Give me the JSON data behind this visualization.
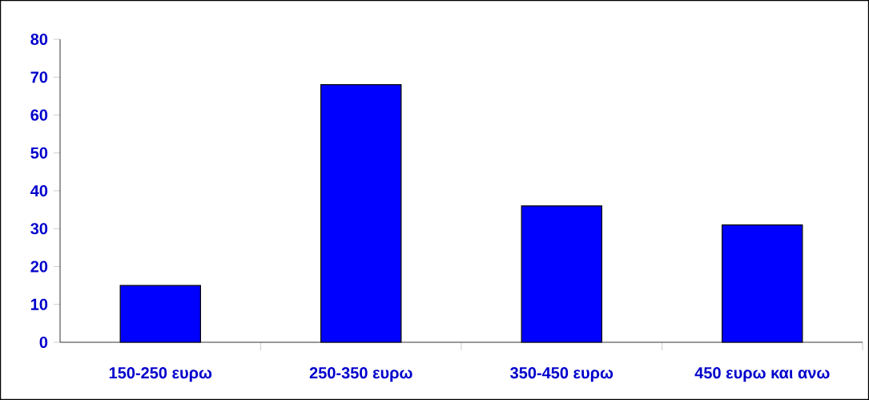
{
  "chart_data": {
    "type": "bar",
    "categories": [
      "150-250 ευρω",
      "250-350 ευρω",
      "350-450 ευρω",
      "450 ευρω και ανω"
    ],
    "values": [
      15,
      68,
      36,
      31
    ],
    "color": "#0000ff",
    "ylim": [
      0,
      80
    ],
    "yticks": [
      0,
      10,
      20,
      30,
      40,
      50,
      60,
      70,
      80
    ]
  }
}
